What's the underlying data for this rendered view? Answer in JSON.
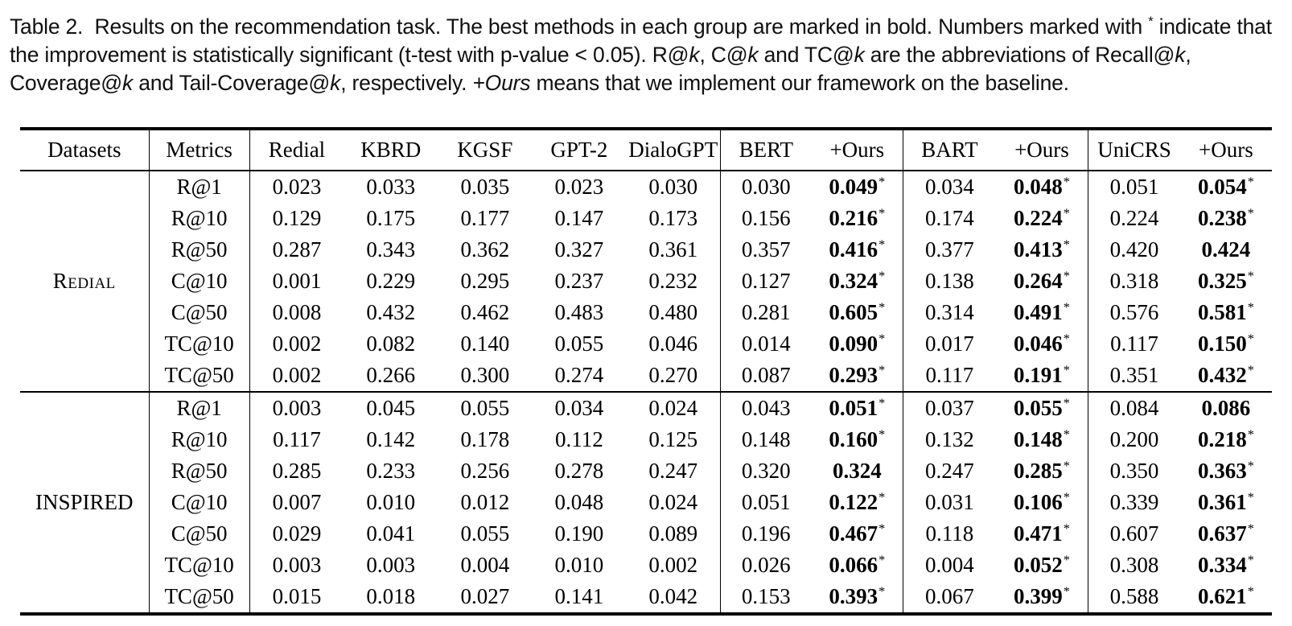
{
  "caption": {
    "parts": [
      {
        "text": "Table 2.  Results on the recommendation task. The best methods in each group are marked in bold. Numbers marked with "
      },
      {
        "text": "*",
        "sup": true
      },
      {
        "text": " indicate that the improvement is statistically significant (t-test with p-value < 0.05). R@"
      },
      {
        "text": "k",
        "italic": true
      },
      {
        "text": ", C@"
      },
      {
        "text": "k",
        "italic": true
      },
      {
        "text": " and TC@"
      },
      {
        "text": "k",
        "italic": true
      },
      {
        "text": " are the abbreviations of Recall@"
      },
      {
        "text": "k",
        "italic": true
      },
      {
        "text": ", Coverage@"
      },
      {
        "text": "k",
        "italic": true
      },
      {
        "text": " and Tail-Coverage@"
      },
      {
        "text": "k",
        "italic": true
      },
      {
        "text": ", respectively. "
      },
      {
        "text": "+Ours",
        "italic": true
      },
      {
        "text": " means that we implement our framework on the baseline."
      }
    ]
  },
  "table": {
    "columns": [
      "Datasets",
      "Metrics",
      "Redial",
      "KBRD",
      "KGSF",
      "GPT-2",
      "DialoGPT",
      "BERT",
      "+Ours",
      "BART",
      "+Ours",
      "UniCRS",
      "+Ours"
    ],
    "header_separators": [
      0,
      1,
      6,
      8,
      10
    ],
    "value_separators": [
      4,
      6,
      8
    ],
    "bold_value_indices": [
      6,
      8,
      10
    ],
    "star_symbol": "*",
    "groups": [
      {
        "dataset": "Redial",
        "smallcaps": true,
        "rows": [
          {
            "metric": "R@1",
            "values": [
              "0.023",
              "0.033",
              "0.035",
              "0.023",
              "0.030",
              "0.030",
              "0.049",
              "0.034",
              "0.048",
              "0.051",
              "0.054"
            ],
            "stars": [
              6,
              8,
              10
            ]
          },
          {
            "metric": "R@10",
            "values": [
              "0.129",
              "0.175",
              "0.177",
              "0.147",
              "0.173",
              "0.156",
              "0.216",
              "0.174",
              "0.224",
              "0.224",
              "0.238"
            ],
            "stars": [
              6,
              8,
              10
            ]
          },
          {
            "metric": "R@50",
            "values": [
              "0.287",
              "0.343",
              "0.362",
              "0.327",
              "0.361",
              "0.357",
              "0.416",
              "0.377",
              "0.413",
              "0.420",
              "0.424"
            ],
            "stars": [
              6,
              8
            ]
          },
          {
            "metric": "C@10",
            "values": [
              "0.001",
              "0.229",
              "0.295",
              "0.237",
              "0.232",
              "0.127",
              "0.324",
              "0.138",
              "0.264",
              "0.318",
              "0.325"
            ],
            "stars": [
              6,
              8,
              10
            ]
          },
          {
            "metric": "C@50",
            "values": [
              "0.008",
              "0.432",
              "0.462",
              "0.483",
              "0.480",
              "0.281",
              "0.605",
              "0.314",
              "0.491",
              "0.576",
              "0.581"
            ],
            "stars": [
              6,
              8,
              10
            ]
          },
          {
            "metric": "TC@10",
            "values": [
              "0.002",
              "0.082",
              "0.140",
              "0.055",
              "0.046",
              "0.014",
              "0.090",
              "0.017",
              "0.046",
              "0.117",
              "0.150"
            ],
            "stars": [
              6,
              8,
              10
            ]
          },
          {
            "metric": "TC@50",
            "values": [
              "0.002",
              "0.266",
              "0.300",
              "0.274",
              "0.270",
              "0.087",
              "0.293",
              "0.117",
              "0.191",
              "0.351",
              "0.432"
            ],
            "stars": [
              6,
              8,
              10
            ]
          }
        ]
      },
      {
        "dataset": "INSPIRED",
        "smallcaps": false,
        "rows": [
          {
            "metric": "R@1",
            "values": [
              "0.003",
              "0.045",
              "0.055",
              "0.034",
              "0.024",
              "0.043",
              "0.051",
              "0.037",
              "0.055",
              "0.084",
              "0.086"
            ],
            "stars": [
              6,
              8
            ]
          },
          {
            "metric": "R@10",
            "values": [
              "0.117",
              "0.142",
              "0.178",
              "0.112",
              "0.125",
              "0.148",
              "0.160",
              "0.132",
              "0.148",
              "0.200",
              "0.218"
            ],
            "stars": [
              6,
              8,
              10
            ]
          },
          {
            "metric": "R@50",
            "values": [
              "0.285",
              "0.233",
              "0.256",
              "0.278",
              "0.247",
              "0.320",
              "0.324",
              "0.247",
              "0.285",
              "0.350",
              "0.363"
            ],
            "stars": [
              8,
              10
            ]
          },
          {
            "metric": "C@10",
            "values": [
              "0.007",
              "0.010",
              "0.012",
              "0.048",
              "0.024",
              "0.051",
              "0.122",
              "0.031",
              "0.106",
              "0.339",
              "0.361"
            ],
            "stars": [
              6,
              8,
              10
            ]
          },
          {
            "metric": "C@50",
            "values": [
              "0.029",
              "0.041",
              "0.055",
              "0.190",
              "0.089",
              "0.196",
              "0.467",
              "0.118",
              "0.471",
              "0.607",
              "0.637"
            ],
            "stars": [
              6,
              8,
              10
            ]
          },
          {
            "metric": "TC@10",
            "values": [
              "0.003",
              "0.003",
              "0.004",
              "0.010",
              "0.002",
              "0.026",
              "0.066",
              "0.004",
              "0.052",
              "0.308",
              "0.334"
            ],
            "stars": [
              6,
              8,
              10
            ]
          },
          {
            "metric": "TC@50",
            "values": [
              "0.015",
              "0.018",
              "0.027",
              "0.141",
              "0.042",
              "0.153",
              "0.393",
              "0.067",
              "0.399",
              "0.588",
              "0.621"
            ],
            "stars": [
              6,
              8,
              10
            ]
          }
        ]
      }
    ]
  }
}
